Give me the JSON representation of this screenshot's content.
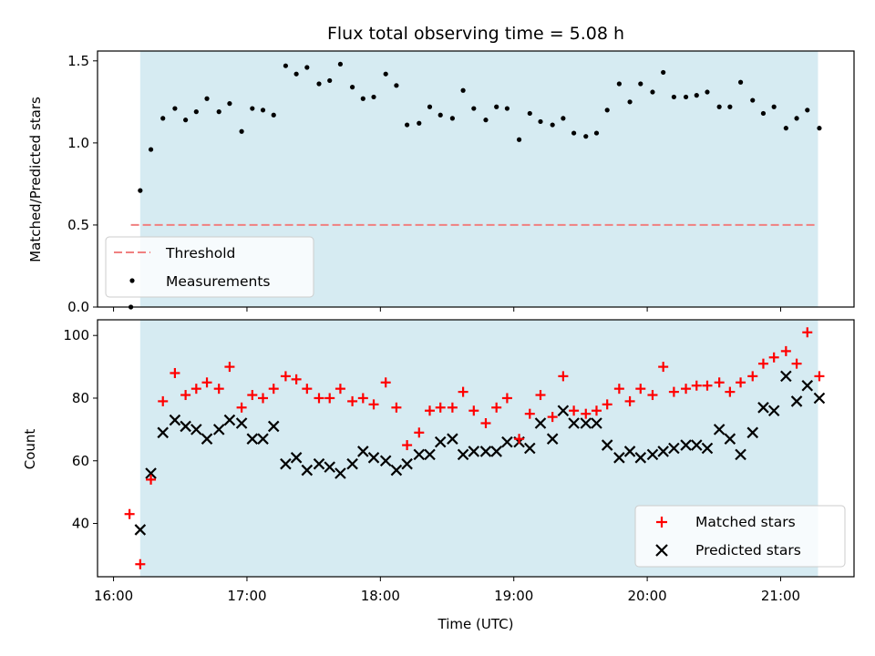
{
  "chart_data": {
    "title": "Flux total observing time = 5.08 h",
    "xlabel": "Time (UTC)",
    "x_ticks": [
      "16:00",
      "17:00",
      "18:00",
      "19:00",
      "20:00",
      "21:00"
    ],
    "x_tick_hours": [
      16,
      17,
      18,
      19,
      20,
      21
    ],
    "xlim": [
      15.88,
      21.55
    ],
    "shaded_interval": {
      "start": 16.2,
      "end": 21.28,
      "color": "#add8e6"
    },
    "panels": [
      {
        "type": "scatter",
        "ylabel": "Matched/Predicted stars",
        "ylim": [
          0,
          1.56
        ],
        "y_ticks": [
          0.0,
          0.5,
          1.0,
          1.5
        ],
        "y_tick_labels": [
          "0.0",
          "0.5",
          "1.0",
          "1.5"
        ],
        "threshold": {
          "name": "Threshold",
          "value": 0.5,
          "x_range": [
            16.13,
            21.28
          ],
          "color": "#f08080"
        },
        "legend": {
          "placement": "lower-left",
          "entries": [
            "Threshold",
            "Measurements"
          ]
        },
        "series": [
          {
            "name": "Measurements",
            "marker": "dot",
            "color": "#000000",
            "points": [
              [
                16.13,
                0.0
              ],
              [
                16.2,
                0.71
              ],
              [
                16.28,
                0.96
              ],
              [
                16.37,
                1.15
              ],
              [
                16.46,
                1.21
              ],
              [
                16.54,
                1.14
              ],
              [
                16.62,
                1.19
              ],
              [
                16.7,
                1.27
              ],
              [
                16.79,
                1.19
              ],
              [
                16.87,
                1.24
              ],
              [
                16.96,
                1.07
              ],
              [
                17.04,
                1.21
              ],
              [
                17.12,
                1.2
              ],
              [
                17.2,
                1.17
              ],
              [
                17.29,
                1.47
              ],
              [
                17.37,
                1.42
              ],
              [
                17.45,
                1.46
              ],
              [
                17.54,
                1.36
              ],
              [
                17.62,
                1.38
              ],
              [
                17.7,
                1.48
              ],
              [
                17.79,
                1.34
              ],
              [
                17.87,
                1.27
              ],
              [
                17.95,
                1.28
              ],
              [
                18.04,
                1.42
              ],
              [
                18.12,
                1.35
              ],
              [
                18.2,
                1.11
              ],
              [
                18.29,
                1.12
              ],
              [
                18.37,
                1.22
              ],
              [
                18.45,
                1.17
              ],
              [
                18.54,
                1.15
              ],
              [
                18.62,
                1.32
              ],
              [
                18.7,
                1.21
              ],
              [
                18.79,
                1.14
              ],
              [
                18.87,
                1.22
              ],
              [
                18.95,
                1.21
              ],
              [
                19.04,
                1.02
              ],
              [
                19.12,
                1.18
              ],
              [
                19.2,
                1.13
              ],
              [
                19.29,
                1.11
              ],
              [
                19.37,
                1.15
              ],
              [
                19.45,
                1.06
              ],
              [
                19.54,
                1.04
              ],
              [
                19.62,
                1.06
              ],
              [
                19.7,
                1.2
              ],
              [
                19.79,
                1.36
              ],
              [
                19.87,
                1.25
              ],
              [
                19.95,
                1.36
              ],
              [
                20.04,
                1.31
              ],
              [
                20.12,
                1.43
              ],
              [
                20.2,
                1.28
              ],
              [
                20.29,
                1.28
              ],
              [
                20.37,
                1.29
              ],
              [
                20.45,
                1.31
              ],
              [
                20.54,
                1.22
              ],
              [
                20.62,
                1.22
              ],
              [
                20.7,
                1.37
              ],
              [
                20.79,
                1.26
              ],
              [
                20.87,
                1.18
              ],
              [
                20.95,
                1.22
              ],
              [
                21.04,
                1.09
              ],
              [
                21.12,
                1.15
              ],
              [
                21.2,
                1.2
              ],
              [
                21.29,
                1.09
              ]
            ]
          }
        ]
      },
      {
        "type": "scatter",
        "ylabel": "Count",
        "ylim": [
          23,
          105
        ],
        "y_ticks": [
          40,
          60,
          80,
          100
        ],
        "y_tick_labels": [
          "40",
          "60",
          "80",
          "100"
        ],
        "legend": {
          "placement": "lower-right",
          "entries": [
            "Matched stars",
            "Predicted stars"
          ]
        },
        "series": [
          {
            "name": "Matched stars",
            "marker": "plus",
            "color": "#ff0000",
            "points": [
              [
                16.12,
                43
              ],
              [
                16.2,
                27
              ],
              [
                16.28,
                54
              ],
              [
                16.37,
                79
              ],
              [
                16.46,
                88
              ],
              [
                16.54,
                81
              ],
              [
                16.62,
                83
              ],
              [
                16.7,
                85
              ],
              [
                16.79,
                83
              ],
              [
                16.87,
                90
              ],
              [
                16.96,
                77
              ],
              [
                17.04,
                81
              ],
              [
                17.12,
                80
              ],
              [
                17.2,
                83
              ],
              [
                17.29,
                87
              ],
              [
                17.37,
                86
              ],
              [
                17.45,
                83
              ],
              [
                17.54,
                80
              ],
              [
                17.62,
                80
              ],
              [
                17.7,
                83
              ],
              [
                17.79,
                79
              ],
              [
                17.87,
                80
              ],
              [
                17.95,
                78
              ],
              [
                18.04,
                85
              ],
              [
                18.12,
                77
              ],
              [
                18.2,
                65
              ],
              [
                18.29,
                69
              ],
              [
                18.37,
                76
              ],
              [
                18.45,
                77
              ],
              [
                18.54,
                77
              ],
              [
                18.62,
                82
              ],
              [
                18.7,
                76
              ],
              [
                18.79,
                72
              ],
              [
                18.87,
                77
              ],
              [
                18.95,
                80
              ],
              [
                19.04,
                67
              ],
              [
                19.12,
                75
              ],
              [
                19.2,
                81
              ],
              [
                19.29,
                74
              ],
              [
                19.37,
                87
              ],
              [
                19.45,
                76
              ],
              [
                19.54,
                75
              ],
              [
                19.62,
                76
              ],
              [
                19.7,
                78
              ],
              [
                19.79,
                83
              ],
              [
                19.87,
                79
              ],
              [
                19.95,
                83
              ],
              [
                20.04,
                81
              ],
              [
                20.12,
                90
              ],
              [
                20.2,
                82
              ],
              [
                20.29,
                83
              ],
              [
                20.37,
                84
              ],
              [
                20.45,
                84
              ],
              [
                20.54,
                85
              ],
              [
                20.62,
                82
              ],
              [
                20.7,
                85
              ],
              [
                20.79,
                87
              ],
              [
                20.87,
                91
              ],
              [
                20.95,
                93
              ],
              [
                21.04,
                95
              ],
              [
                21.12,
                91
              ],
              [
                21.2,
                101
              ],
              [
                21.29,
                87
              ]
            ]
          },
          {
            "name": "Predicted stars",
            "marker": "x",
            "color": "#000000",
            "points": [
              [
                16.2,
                38
              ],
              [
                16.28,
                56
              ],
              [
                16.37,
                69
              ],
              [
                16.46,
                73
              ],
              [
                16.54,
                71
              ],
              [
                16.62,
                70
              ],
              [
                16.7,
                67
              ],
              [
                16.79,
                70
              ],
              [
                16.87,
                73
              ],
              [
                16.96,
                72
              ],
              [
                17.04,
                67
              ],
              [
                17.12,
                67
              ],
              [
                17.2,
                71
              ],
              [
                17.29,
                59
              ],
              [
                17.37,
                61
              ],
              [
                17.45,
                57
              ],
              [
                17.54,
                59
              ],
              [
                17.62,
                58
              ],
              [
                17.7,
                56
              ],
              [
                17.79,
                59
              ],
              [
                17.87,
                63
              ],
              [
                17.95,
                61
              ],
              [
                18.04,
                60
              ],
              [
                18.12,
                57
              ],
              [
                18.2,
                59
              ],
              [
                18.29,
                62
              ],
              [
                18.37,
                62
              ],
              [
                18.45,
                66
              ],
              [
                18.54,
                67
              ],
              [
                18.62,
                62
              ],
              [
                18.7,
                63
              ],
              [
                18.79,
                63
              ],
              [
                18.87,
                63
              ],
              [
                18.95,
                66
              ],
              [
                19.04,
                66
              ],
              [
                19.12,
                64
              ],
              [
                19.2,
                72
              ],
              [
                19.29,
                67
              ],
              [
                19.37,
                76
              ],
              [
                19.45,
                72
              ],
              [
                19.54,
                72
              ],
              [
                19.62,
                72
              ],
              [
                19.7,
                65
              ],
              [
                19.79,
                61
              ],
              [
                19.87,
                63
              ],
              [
                19.95,
                61
              ],
              [
                20.04,
                62
              ],
              [
                20.12,
                63
              ],
              [
                20.2,
                64
              ],
              [
                20.29,
                65
              ],
              [
                20.37,
                65
              ],
              [
                20.45,
                64
              ],
              [
                20.54,
                70
              ],
              [
                20.62,
                67
              ],
              [
                20.7,
                62
              ],
              [
                20.79,
                69
              ],
              [
                20.87,
                77
              ],
              [
                20.95,
                76
              ],
              [
                21.04,
                87
              ],
              [
                21.12,
                79
              ],
              [
                21.2,
                84
              ],
              [
                21.29,
                80
              ]
            ]
          }
        ]
      }
    ]
  }
}
